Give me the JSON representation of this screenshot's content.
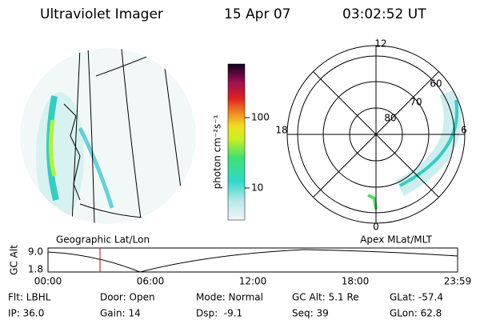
{
  "header": {
    "title": "Ultraviolet Imager",
    "date": "15 Apr 07",
    "time": "03:02:52 UT"
  },
  "colorbar": {
    "label": "photon cm⁻²s⁻¹",
    "ticks": [
      "100",
      "10"
    ]
  },
  "map": {
    "label": "Geographic Lat/Lon"
  },
  "polar": {
    "label": "Apex MLat/MLT",
    "mlt_labels": [
      "12",
      "18",
      "6",
      "0"
    ],
    "lat_labels": [
      "60",
      "70",
      "80"
    ]
  },
  "altitude": {
    "ylabel": "GC Alt",
    "yticks": [
      "9.0",
      "1.8"
    ],
    "xticks": [
      "00:00",
      "06:00",
      "12:00",
      "18:00",
      "23:59"
    ]
  },
  "footer": {
    "rows": [
      [
        "Flt: LBHL",
        "Door: Open",
        "Mode: Normal",
        "GC Alt: 5.1 Re",
        "GLat: -57.4"
      ],
      [
        "IP: 36.0",
        "Gain: 14",
        "Dsp:  -9.1",
        "Seq: 39",
        "GLon: 62.8"
      ]
    ]
  }
}
